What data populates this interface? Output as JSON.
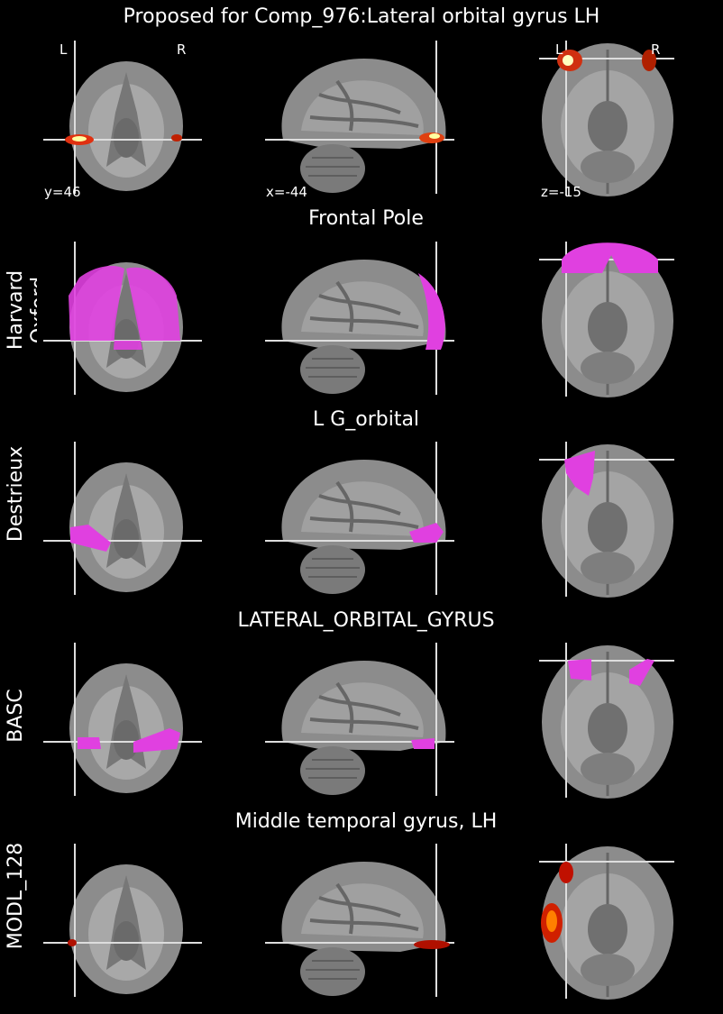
{
  "title": "Proposed for Comp_976:Lateral orbital gyrus LH",
  "coordinates": [
    "y=46",
    "x=-44",
    "z=-15"
  ],
  "orientation": {
    "coronal": [
      "L",
      "R"
    ],
    "axial": [
      "L",
      "R"
    ]
  },
  "rows": [
    {
      "atlas": "Harvard Oxford",
      "region": "Frontal Pole"
    },
    {
      "atlas": "Destrieux",
      "region": "L G_orbital"
    },
    {
      "atlas": "BASC",
      "region": "LATERAL_ORBITAL_GYRUS"
    },
    {
      "atlas": "MODL_128",
      "region": "Middle temporal gyrus, LH"
    }
  ]
}
